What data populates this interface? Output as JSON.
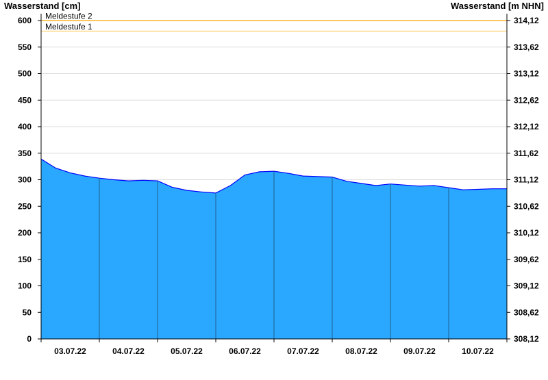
{
  "chart_data": {
    "type": "area",
    "ylabel_left": "Wasserstand [cm]",
    "ylabel_right": "Wasserstand [m NHN]",
    "ylim": [
      0,
      600
    ],
    "yticks": [
      0,
      50,
      100,
      150,
      200,
      250,
      300,
      350,
      400,
      450,
      500,
      550,
      600
    ],
    "yticks_right": [
      "308,12",
      "308,62",
      "309,12",
      "309,62",
      "310,12",
      "310,62",
      "311,12",
      "311,62",
      "312,12",
      "312,62",
      "313,12",
      "313,62",
      "314,12"
    ],
    "xlim": [
      "2022-07-03T00:00",
      "2022-07-11T00:00"
    ],
    "xtick_labels": [
      "03.07.22",
      "04.07.22",
      "05.07.22",
      "06.07.22",
      "07.07.22",
      "08.07.22",
      "09.07.22",
      "10.07.22"
    ],
    "grid": true,
    "thresholds": [
      {
        "name": "Meldestufe 2",
        "value": 600,
        "color": "#ffa500"
      },
      {
        "name": "Meldestufe 1",
        "value": 580,
        "color": "#ffd070"
      }
    ],
    "fill_color": "#2aa8ff",
    "line_color": "#0000ff",
    "series": [
      {
        "x": [
          "2022-07-03T00:00",
          "2022-07-03T06:00",
          "2022-07-03T12:00",
          "2022-07-03T18:00",
          "2022-07-04T00:00",
          "2022-07-04T06:00",
          "2022-07-04T12:00",
          "2022-07-04T18:00",
          "2022-07-05T00:00",
          "2022-07-05T06:00",
          "2022-07-05T12:00",
          "2022-07-05T18:00",
          "2022-07-06T00:00",
          "2022-07-06T06:00",
          "2022-07-06T12:00",
          "2022-07-06T18:00",
          "2022-07-07T00:00",
          "2022-07-07T06:00",
          "2022-07-07T12:00",
          "2022-07-07T18:00",
          "2022-07-08T00:00",
          "2022-07-08T06:00",
          "2022-07-08T12:00",
          "2022-07-08T18:00",
          "2022-07-09T00:00",
          "2022-07-09T06:00",
          "2022-07-09T12:00",
          "2022-07-09T18:00",
          "2022-07-10T00:00",
          "2022-07-10T06:00",
          "2022-07-10T12:00",
          "2022-07-10T18:00",
          "2022-07-11T00:00"
        ],
        "values": [
          339,
          322,
          313,
          307,
          303,
          300,
          298,
          299,
          298,
          286,
          280,
          277,
          275,
          289,
          309,
          315,
          316,
          312,
          307,
          306,
          305,
          297,
          293,
          289,
          292,
          290,
          288,
          289,
          285,
          281,
          282,
          283,
          283
        ]
      }
    ]
  }
}
